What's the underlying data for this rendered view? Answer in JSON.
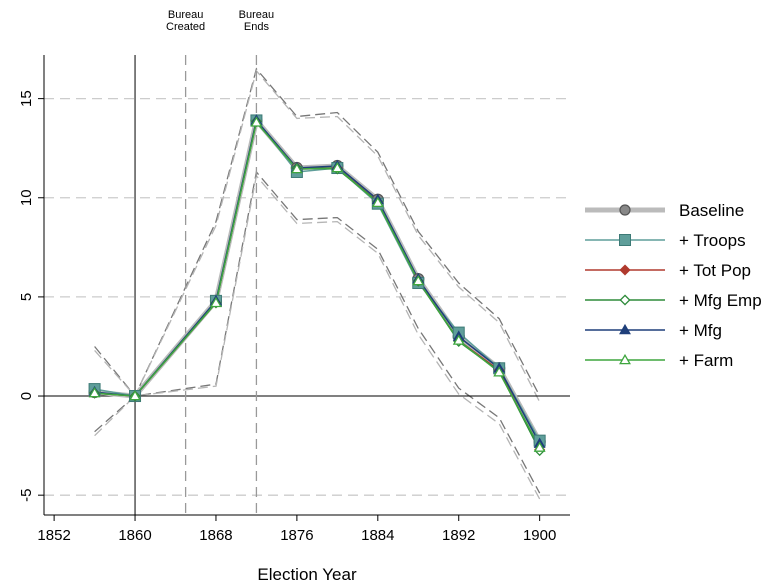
{
  "chart_data": {
    "type": "line",
    "title": "",
    "xlabel": "Election Year",
    "ylabel": "",
    "x": [
      1856,
      1860,
      1868,
      1872,
      1876,
      1880,
      1884,
      1888,
      1892,
      1896,
      1900
    ],
    "xlim": [
      1851,
      1903
    ],
    "ylim": [
      -6,
      17.2
    ],
    "x_ticks": [
      1852,
      1860,
      1868,
      1876,
      1884,
      1892,
      1900
    ],
    "x_tick_labels": [
      "1852",
      "1860",
      "1868",
      "1876",
      "1884",
      "1892",
      "1900"
    ],
    "y_ticks": [
      -5,
      0,
      5,
      10,
      15
    ],
    "y_tick_labels": [
      "-5",
      "0",
      "5",
      "10",
      "15"
    ],
    "grid": "horizontal dashed",
    "legend_position": "right",
    "annotations": [
      {
        "x": 1865,
        "lines": [
          "Bureau",
          "Created"
        ]
      },
      {
        "x": 1872,
        "lines": [
          "Bureau",
          "Ends"
        ]
      }
    ],
    "series": [
      {
        "name": "Baseline",
        "marker": "circle",
        "color": "#555555",
        "line_color": "#bbbbbb",
        "values": [
          0.2,
          0.0,
          4.8,
          13.9,
          11.5,
          11.6,
          9.9,
          5.9,
          3.0,
          1.4,
          -2.3
        ]
      },
      {
        "name": "+ Troops",
        "marker": "square",
        "color": "#5f9e9a",
        "line_color": "#5f9e9a",
        "values": [
          0.35,
          0.0,
          4.8,
          13.9,
          11.3,
          11.5,
          9.7,
          5.7,
          3.2,
          1.4,
          -2.25
        ]
      },
      {
        "name": "+ Tot Pop",
        "marker": "diamond",
        "color": "#b03a2e",
        "line_color": "#b03a2e",
        "values": [
          0.15,
          0.0,
          4.7,
          13.85,
          11.5,
          11.5,
          9.8,
          5.8,
          2.8,
          1.3,
          -2.7
        ]
      },
      {
        "name": "+ Mfg Emp",
        "marker": "diamond-open",
        "color": "#2e8b3a",
        "line_color": "#2e8b3a",
        "values": [
          0.15,
          0.0,
          4.7,
          13.85,
          11.5,
          11.45,
          9.8,
          5.8,
          2.75,
          1.25,
          -2.75
        ]
      },
      {
        "name": "+ Mfg",
        "marker": "triangle",
        "color": "#1f3f7a",
        "line_color": "#1f3f7a",
        "values": [
          0.2,
          0.0,
          4.8,
          13.9,
          11.5,
          11.6,
          9.9,
          5.9,
          3.0,
          1.4,
          -2.4
        ]
      },
      {
        "name": "+ Farm",
        "marker": "triangle-open",
        "color": "#3fa63f",
        "line_color": "#3fa63f",
        "values": [
          0.15,
          0.0,
          4.7,
          13.8,
          11.45,
          11.5,
          9.75,
          5.8,
          2.8,
          1.2,
          -2.6
        ]
      }
    ],
    "confidence_bands": {
      "upper": [
        [
          2.5,
          0.0,
          8.8,
          16.5,
          14.1,
          14.3,
          12.3,
          8.3,
          5.7,
          3.9,
          0.0
        ],
        [
          2.3,
          0.0,
          8.6,
          16.4,
          14.0,
          14.1,
          12.1,
          8.1,
          5.5,
          3.7,
          -0.3
        ]
      ],
      "lower": [
        [
          -1.8,
          0.0,
          0.6,
          11.3,
          8.9,
          9.0,
          7.4,
          3.4,
          0.4,
          -1.1,
          -4.9
        ],
        [
          -2.0,
          0.0,
          0.5,
          11.1,
          8.7,
          8.8,
          7.2,
          3.1,
          0.1,
          -1.4,
          -5.2
        ]
      ]
    }
  }
}
